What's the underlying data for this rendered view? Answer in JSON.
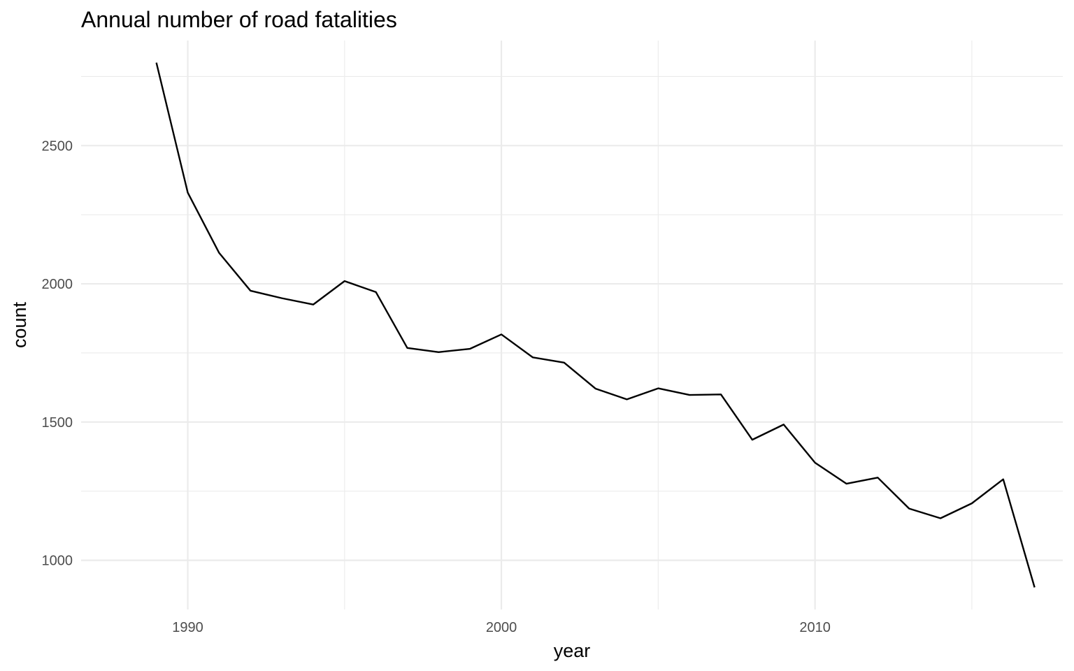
{
  "chart_data": {
    "type": "line",
    "title": "Annual number of road fatalities",
    "xlabel": "year",
    "ylabel": "count",
    "xlim": [
      1986.6,
      2017.9
    ],
    "ylim": [
      822,
      2880
    ],
    "x_major_ticks": [
      1990,
      2000,
      2010
    ],
    "x_minor_ticks": [
      1995,
      2005,
      2015
    ],
    "y_major_ticks": [
      1000,
      1500,
      2000,
      2500
    ],
    "y_minor_ticks": [
      1250,
      1750,
      2250,
      2750
    ],
    "grid": true,
    "legend": "none",
    "line_color": "#000000",
    "x": [
      1989,
      1990,
      1991,
      1992,
      1993,
      1994,
      1995,
      1996,
      1997,
      1998,
      1999,
      2000,
      2001,
      2002,
      2003,
      2004,
      2005,
      2006,
      2007,
      2008,
      2009,
      2010,
      2011,
      2012,
      2013,
      2014,
      2015,
      2016,
      2017
    ],
    "values": [
      2800,
      2330,
      2112,
      1975,
      1948,
      1925,
      2010,
      1970,
      1768,
      1753,
      1765,
      1817,
      1734,
      1715,
      1621,
      1582,
      1622,
      1598,
      1600,
      1436,
      1491,
      1353,
      1277,
      1299,
      1187,
      1152,
      1206,
      1293,
      902
    ]
  }
}
